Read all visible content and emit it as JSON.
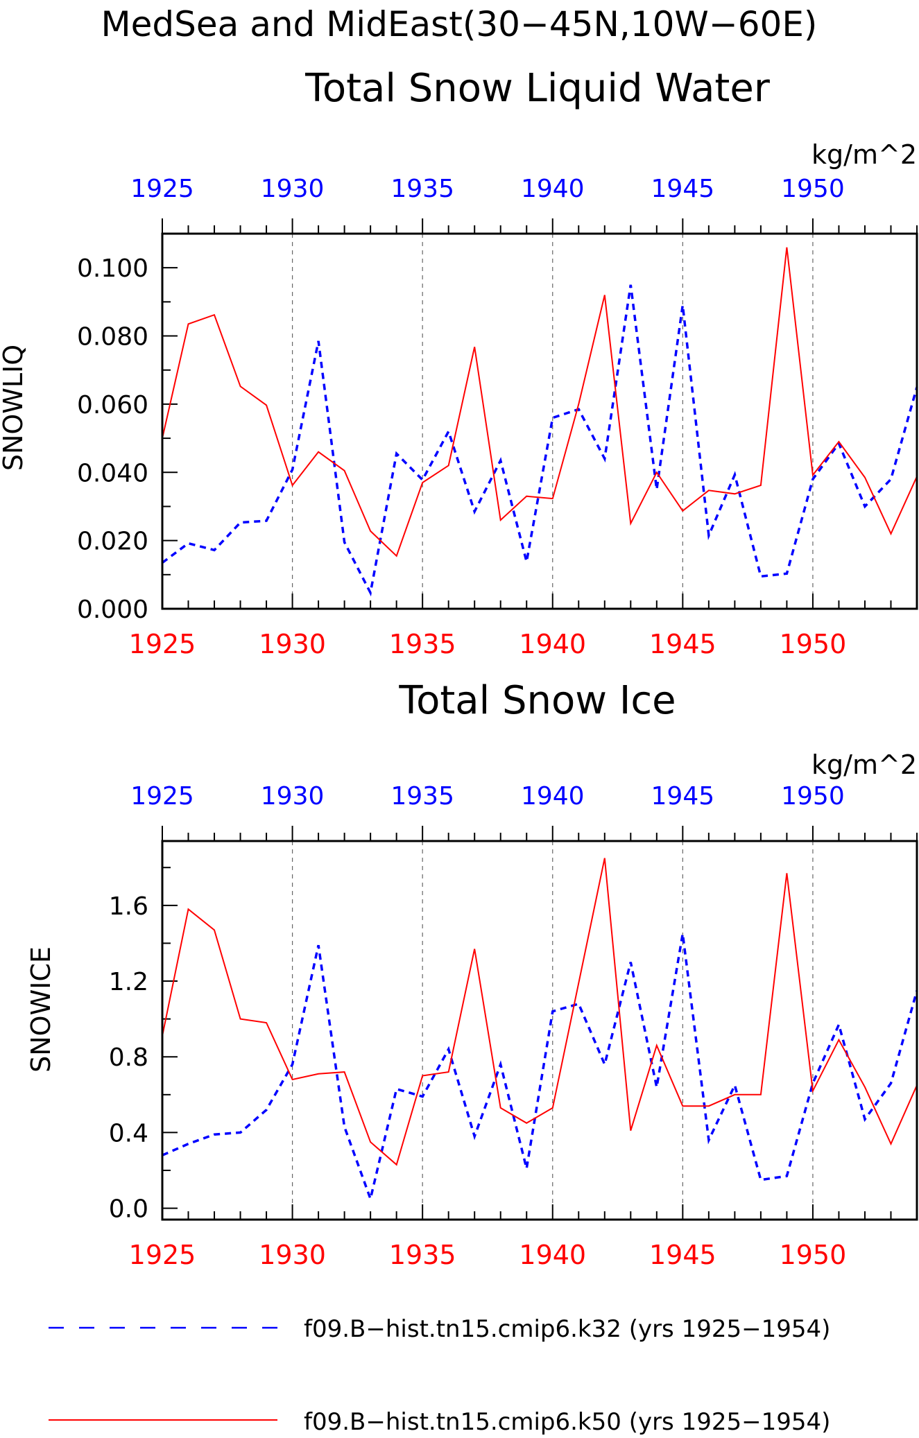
{
  "header": {
    "title": "MedSea and MidEast(30−45N,10W−60E)"
  },
  "chart_data": [
    {
      "type": "line",
      "title": "Total Snow Liquid Water",
      "units": "kg/m^2",
      "ylabel": "SNOWLIQ",
      "xlabel": "",
      "ylim": [
        0,
        0.11
      ],
      "xlim": [
        1925,
        1954
      ],
      "yticks": [
        0.0,
        0.02,
        0.04,
        0.06,
        0.08,
        0.1
      ],
      "ytick_labels": [
        "0.000",
        "0.020",
        "0.040",
        "0.060",
        "0.080",
        "0.100"
      ],
      "xticks": [
        1925,
        1930,
        1935,
        1940,
        1945,
        1950
      ],
      "xtick_labels_top": [
        "1925",
        "1930",
        "1935",
        "1940",
        "1945",
        "1950"
      ],
      "xtick_labels_bottom": [
        "1925",
        "1930",
        "1935",
        "1940",
        "1945",
        "1950"
      ],
      "grid": "vertical dashed at major x ticks",
      "x": [
        1925,
        1926,
        1927,
        1928,
        1929,
        1930,
        1931,
        1932,
        1933,
        1934,
        1935,
        1936,
        1937,
        1938,
        1939,
        1940,
        1941,
        1942,
        1943,
        1944,
        1945,
        1946,
        1947,
        1948,
        1949,
        1950,
        1951,
        1952,
        1953,
        1954
      ],
      "series": [
        {
          "name": "f09.B−hist.tn15.cmip6.k32 (yrs 1925−1954)",
          "color": "#0000ff",
          "style": "dashed",
          "values": [
            0.0135,
            0.0192,
            0.0172,
            0.0253,
            0.0258,
            0.0408,
            0.0785,
            0.0195,
            0.0047,
            0.0455,
            0.0378,
            0.052,
            0.0285,
            0.0435,
            0.0138,
            0.056,
            0.0585,
            0.044,
            0.095,
            0.035,
            0.089,
            0.0215,
            0.0393,
            0.0095,
            0.0103,
            0.038,
            0.0485,
            0.03,
            0.038,
            0.065
          ]
        },
        {
          "name": "f09.B−hist.tn15.cmip6.k50 (yrs 1925−1954)",
          "color": "#ff0000",
          "style": "solid",
          "values": [
            0.05,
            0.0835,
            0.0862,
            0.0652,
            0.0597,
            0.0362,
            0.046,
            0.0405,
            0.0228,
            0.0155,
            0.037,
            0.042,
            0.0768,
            0.026,
            0.033,
            0.0323,
            0.06,
            0.092,
            0.025,
            0.04,
            0.0287,
            0.0347,
            0.0337,
            0.0362,
            0.106,
            0.0392,
            0.049,
            0.0385,
            0.022,
            0.0388
          ]
        }
      ]
    },
    {
      "type": "line",
      "title": "Total Snow Ice",
      "units": "kg/m^2",
      "ylabel": "SNOWICE",
      "xlabel": "",
      "ylim": [
        -0.06,
        1.94
      ],
      "xlim": [
        1925,
        1954
      ],
      "yticks": [
        0.0,
        0.4,
        0.8,
        1.2,
        1.6
      ],
      "ytick_labels": [
        "0.0",
        "0.4",
        "0.8",
        "1.2",
        "1.6"
      ],
      "xticks": [
        1925,
        1930,
        1935,
        1940,
        1945,
        1950
      ],
      "xtick_labels_top": [
        "1925",
        "1930",
        "1935",
        "1940",
        "1945",
        "1950"
      ],
      "xtick_labels_bottom": [
        "1925",
        "1930",
        "1935",
        "1940",
        "1945",
        "1950"
      ],
      "grid": "vertical dashed at major x ticks",
      "x": [
        1925,
        1926,
        1927,
        1928,
        1929,
        1930,
        1931,
        1932,
        1933,
        1934,
        1935,
        1936,
        1937,
        1938,
        1939,
        1940,
        1941,
        1942,
        1943,
        1944,
        1945,
        1946,
        1947,
        1948,
        1949,
        1950,
        1951,
        1952,
        1953,
        1954
      ],
      "series": [
        {
          "name": "f09.B−hist.tn15.cmip6.k32 (yrs 1925−1954)",
          "color": "#0000ff",
          "style": "dashed",
          "values": [
            0.28,
            0.34,
            0.39,
            0.4,
            0.52,
            0.76,
            1.39,
            0.43,
            0.05,
            0.63,
            0.59,
            0.84,
            0.38,
            0.76,
            0.21,
            1.04,
            1.08,
            0.76,
            1.3,
            0.64,
            1.45,
            0.36,
            0.65,
            0.15,
            0.17,
            0.66,
            0.97,
            0.47,
            0.66,
            1.15
          ]
        },
        {
          "name": "f09.B−hist.tn15.cmip6.k50 (yrs 1925−1954)",
          "color": "#ff0000",
          "style": "solid",
          "values": [
            0.91,
            1.58,
            1.47,
            1.0,
            0.98,
            0.68,
            0.71,
            0.72,
            0.35,
            0.23,
            0.7,
            0.72,
            1.37,
            0.53,
            0.45,
            0.53,
            1.19,
            1.85,
            0.41,
            0.86,
            0.54,
            0.54,
            0.6,
            0.6,
            1.77,
            0.62,
            0.89,
            0.64,
            0.34,
            0.65
          ]
        }
      ]
    }
  ],
  "legend": {
    "items": [
      {
        "label": "f09.B−hist.tn15.cmip6.k32 (yrs 1925−1954)",
        "color": "#0000ff",
        "style": "dashed"
      },
      {
        "label": "f09.B−hist.tn15.cmip6.k50 (yrs 1925−1954)",
        "color": "#ff0000",
        "style": "solid"
      }
    ]
  }
}
